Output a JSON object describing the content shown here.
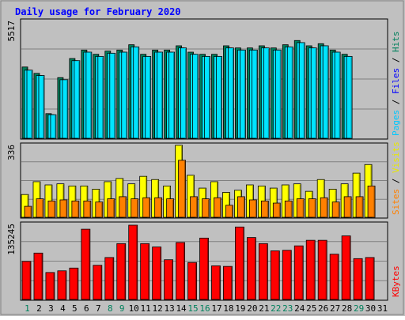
{
  "title": "Daily usage for February 2020",
  "colors": {
    "frame_bg": "#c0c0c0",
    "plot_bg": "#c0c0c0",
    "hits": "#00805c",
    "files": "#00e4ff",
    "pages": "#00e4ff",
    "visits": "#ffff00",
    "sites": "#ff8000",
    "kbytes": "#ff0000",
    "title_text": "#0000ff",
    "weekend_day": "#00805c",
    "weekday": "#000000"
  },
  "chart_data": [
    {
      "type": "bar",
      "name": "hits-files-pages",
      "ylabel_parts": [
        {
          "text": "Pages",
          "color": "#00c8ff"
        },
        {
          "text": " / ",
          "color": "#000000"
        },
        {
          "text": "Files",
          "color": "#0000ff"
        },
        {
          "text": " / ",
          "color": "#000000"
        },
        {
          "text": "Hits",
          "color": "#00805c"
        }
      ],
      "ymax_label": "5517",
      "ylim": [
        0,
        5517
      ],
      "x": [
        1,
        2,
        3,
        4,
        5,
        6,
        7,
        8,
        9,
        10,
        11,
        12,
        13,
        14,
        15,
        16,
        17,
        18,
        19,
        20,
        21,
        22,
        23,
        24,
        25,
        26,
        27,
        28,
        29,
        30,
        31
      ],
      "series": [
        {
          "name": "Hits",
          "values": [
            3400,
            3100,
            1200,
            2900,
            3800,
            4200,
            4000,
            4150,
            4200,
            4450,
            4000,
            4200,
            4200,
            4400,
            4100,
            4000,
            4000,
            4400,
            4300,
            4300,
            4400,
            4300,
            4450,
            4650,
            4400,
            4500,
            4200,
            4000,
            0,
            0,
            0
          ]
        },
        {
          "name": "Files",
          "values": [
            3250,
            3000,
            1150,
            2800,
            3700,
            4100,
            3900,
            4050,
            4100,
            4350,
            3900,
            4100,
            4100,
            4300,
            4000,
            3900,
            3900,
            4300,
            4200,
            4200,
            4300,
            4200,
            4350,
            4550,
            4300,
            4400,
            4100,
            3900,
            0,
            0,
            0
          ]
        },
        {
          "name": "Pages",
          "values": [
            3250,
            3000,
            1150,
            2800,
            3700,
            4100,
            3900,
            4050,
            4100,
            4350,
            3900,
            4100,
            4100,
            4300,
            4000,
            3900,
            3900,
            4300,
            4200,
            4200,
            4300,
            4200,
            4350,
            4550,
            4300,
            4400,
            4100,
            3900,
            0,
            0,
            0
          ]
        }
      ]
    },
    {
      "type": "bar",
      "name": "visits-sites",
      "ylabel_parts": [
        {
          "text": "Sites",
          "color": "#ff8000"
        },
        {
          "text": " / ",
          "color": "#000000"
        },
        {
          "text": "Visits",
          "color": "#e8e800"
        }
      ],
      "ymax_label": "336",
      "ylim": [
        0,
        336
      ],
      "x": [
        1,
        2,
        3,
        4,
        5,
        6,
        7,
        8,
        9,
        10,
        11,
        12,
        13,
        14,
        15,
        16,
        17,
        18,
        19,
        20,
        21,
        22,
        23,
        24,
        25,
        26,
        27,
        28,
        29,
        30,
        31
      ],
      "series": [
        {
          "name": "Visits",
          "values": [
            110,
            170,
            155,
            160,
            150,
            150,
            135,
            170,
            185,
            160,
            195,
            180,
            150,
            340,
            200,
            140,
            170,
            120,
            130,
            155,
            150,
            140,
            155,
            160,
            125,
            180,
            135,
            160,
            210,
            250,
            0
          ]
        },
        {
          "name": "Sites",
          "values": [
            55,
            90,
            80,
            85,
            80,
            80,
            75,
            90,
            100,
            90,
            95,
            95,
            90,
            270,
            100,
            90,
            95,
            60,
            100,
            85,
            80,
            70,
            80,
            90,
            90,
            95,
            75,
            100,
            100,
            150,
            0
          ]
        }
      ]
    },
    {
      "type": "bar",
      "name": "kbytes",
      "ylabel_parts": [
        {
          "text": "KBytes",
          "color": "#ff0000"
        }
      ],
      "ymax_label": "135245",
      "ylim": [
        0,
        135245
      ],
      "x": [
        1,
        2,
        3,
        4,
        5,
        6,
        7,
        8,
        9,
        10,
        11,
        12,
        13,
        14,
        15,
        16,
        17,
        18,
        19,
        20,
        21,
        22,
        23,
        24,
        25,
        26,
        27,
        28,
        29,
        30,
        31
      ],
      "series": [
        {
          "name": "KBytes",
          "values": [
            70000,
            85000,
            50000,
            53000,
            58000,
            128000,
            63000,
            77000,
            102000,
            135245,
            102000,
            96000,
            73000,
            104000,
            68000,
            112000,
            62000,
            61000,
            132000,
            113000,
            102000,
            89000,
            90000,
            98000,
            108000,
            108000,
            83000,
            116000,
            75000,
            77000,
            0
          ]
        }
      ]
    }
  ],
  "x_ticks": [
    "1",
    "2",
    "3",
    "4",
    "5",
    "6",
    "7",
    "8",
    "9",
    "10",
    "11",
    "12",
    "13",
    "14",
    "15",
    "16",
    "17",
    "18",
    "19",
    "20",
    "21",
    "22",
    "23",
    "24",
    "25",
    "26",
    "27",
    "28",
    "29",
    "30",
    "31"
  ],
  "weekend_days": [
    1,
    8,
    9,
    15,
    16,
    22,
    23,
    29
  ]
}
